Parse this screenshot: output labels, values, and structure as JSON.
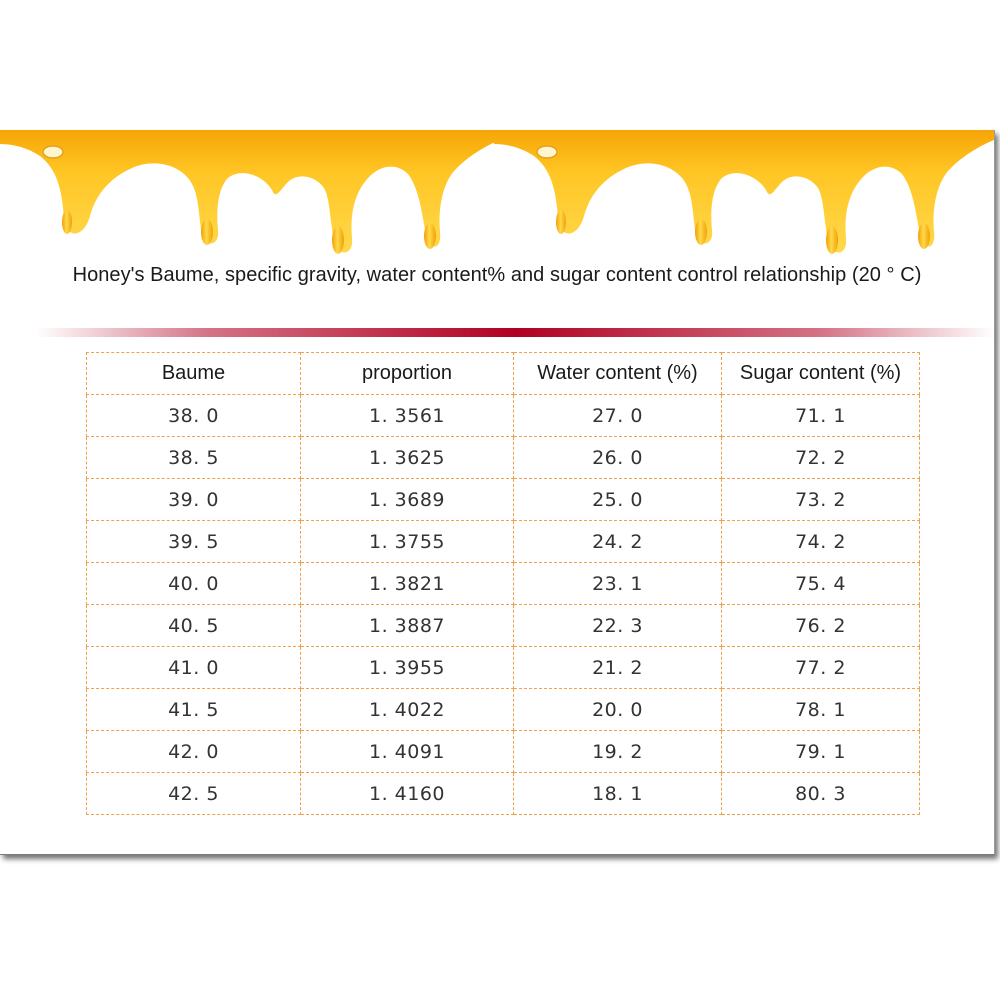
{
  "title": "Honey's Baume, specific gravity, water content% and sugar content control relationship (20 ° C)",
  "colors": {
    "honey_light": "#ffd23a",
    "honey_dark": "#f2a007",
    "divider": "#b00022",
    "table_border": "#f0a14d"
  },
  "table": {
    "headers": [
      "Baume",
      "proportion",
      "Water content (%)",
      "Sugar content (%)"
    ],
    "rows": [
      [
        "38. 0",
        "1. 3561",
        "27. 0",
        "71. 1"
      ],
      [
        "38. 5",
        "1. 3625",
        "26. 0",
        "72. 2"
      ],
      [
        "39. 0",
        "1. 3689",
        "25. 0",
        "73. 2"
      ],
      [
        "39. 5",
        "1. 3755",
        "24. 2",
        "74. 2"
      ],
      [
        "40. 0",
        "1. 3821",
        "23. 1",
        "75. 4"
      ],
      [
        "40. 5",
        "1. 3887",
        "22. 3",
        "76. 2"
      ],
      [
        "41. 0",
        "1. 3955",
        "21. 2",
        "77. 2"
      ],
      [
        "41. 5",
        "1. 4022",
        "20. 0",
        "78. 1"
      ],
      [
        "42. 0",
        "1. 4091",
        "19. 2",
        "79. 1"
      ],
      [
        "42. 5",
        "1. 4160",
        "18. 1",
        "80. 3"
      ]
    ]
  }
}
